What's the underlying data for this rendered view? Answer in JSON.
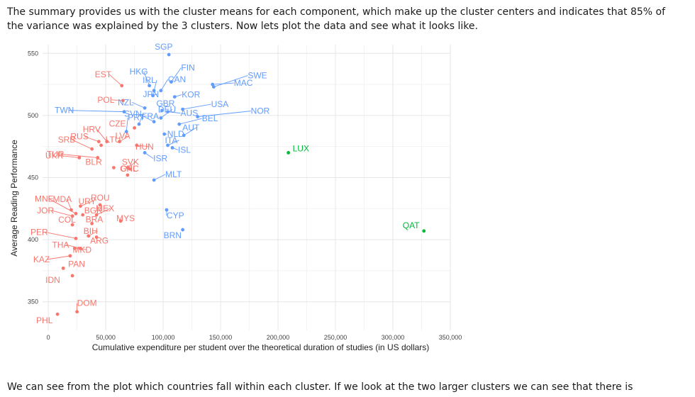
{
  "text": {
    "intro": "The summary provides us with the cluster means for each component, which make up the cluster centers and indicates that 85% of the variance was explained by the 3 clusters. Now lets plot the data and see what it looks like.",
    "outro": "We can see from the plot which countries fall within each cluster. If we look at the two larger clusters we can see that there is"
  },
  "chart_data": {
    "type": "scatter",
    "xlabel": "Cumulative expenditure per student over the theoretical duration of studies (in US dollars)",
    "ylabel": "Average Reading Performance",
    "xlim": [
      -5000,
      350000
    ],
    "ylim": [
      327,
      557
    ],
    "x_ticks": [
      0,
      50000,
      100000,
      150000,
      200000,
      250000,
      300000,
      350000
    ],
    "x_tick_labels": [
      "0",
      "50,000",
      "100,000",
      "150,000",
      "200,000",
      "250,000",
      "300,000",
      "350,000"
    ],
    "y_ticks": [
      350,
      400,
      450,
      500,
      550
    ],
    "y_tick_labels": [
      "350",
      "400",
      "450",
      "500",
      "550"
    ],
    "grid": true,
    "legend": "none",
    "cluster_colors": {
      "1": "#f8766d",
      "2": "#619cff",
      "3": "#00ba38"
    },
    "points": [
      {
        "label": "SGP",
        "x": 105000,
        "y": 549,
        "cluster": 2
      },
      {
        "label": "HKG",
        "x": 88000,
        "y": 524,
        "cluster": 2
      },
      {
        "label": "FIN",
        "x": 107000,
        "y": 527,
        "cluster": 2
      },
      {
        "label": "EST",
        "x": 64000,
        "y": 524,
        "cluster": 1
      },
      {
        "label": "IRL",
        "x": 92000,
        "y": 520,
        "cluster": 2
      },
      {
        "label": "CAN",
        "x": 98000,
        "y": 520,
        "cluster": 2
      },
      {
        "label": "SWE",
        "x": 144000,
        "y": 523,
        "cluster": 2
      },
      {
        "label": "POL",
        "x": 65000,
        "y": 512,
        "cluster": 1
      },
      {
        "label": "JPN",
        "x": 91000,
        "y": 516,
        "cluster": 2
      },
      {
        "label": "KOR",
        "x": 110000,
        "y": 515,
        "cluster": 2
      },
      {
        "label": "MAC",
        "x": 143000,
        "y": 525,
        "cluster": 2
      },
      {
        "label": "TWN",
        "x": 66000,
        "y": 503,
        "cluster": 2
      },
      {
        "label": "NZL",
        "x": 84000,
        "y": 506,
        "cluster": 2
      },
      {
        "label": "GBR",
        "x": 99000,
        "y": 504,
        "cluster": 2
      },
      {
        "label": "USA",
        "x": 117000,
        "y": 505,
        "cluster": 2
      },
      {
        "label": "CZE",
        "x": 75000,
        "y": 490,
        "cluster": 1
      },
      {
        "label": "SVN",
        "x": 92000,
        "y": 495,
        "cluster": 2
      },
      {
        "label": "AUS",
        "x": 104000,
        "y": 503,
        "cluster": 2
      },
      {
        "label": "NOR",
        "x": 130000,
        "y": 499,
        "cluster": 2
      },
      {
        "label": "TUR",
        "x": 43000,
        "y": 466,
        "cluster": 1
      },
      {
        "label": "HRV",
        "x": 51000,
        "y": 479,
        "cluster": 1
      },
      {
        "label": "PRT",
        "x": 68000,
        "y": 487,
        "cluster": 2
      },
      {
        "label": "FRA",
        "x": 79000,
        "y": 493,
        "cluster": 2
      },
      {
        "label": "DEU",
        "x": 98000,
        "y": 498,
        "cluster": 2
      },
      {
        "label": "BEL",
        "x": 114000,
        "y": 493,
        "cluster": 2
      },
      {
        "label": "UKR",
        "x": 27000,
        "y": 466,
        "cluster": 1
      },
      {
        "label": "RUS",
        "x": 44000,
        "y": 479,
        "cluster": 1
      },
      {
        "label": "LVA",
        "x": 62000,
        "y": 479,
        "cluster": 1
      },
      {
        "label": "ITA",
        "x": 104000,
        "y": 476,
        "cluster": 2
      },
      {
        "label": "NLD",
        "x": 101000,
        "y": 485,
        "cluster": 2
      },
      {
        "label": "AUT",
        "x": 118000,
        "y": 484,
        "cluster": 2
      },
      {
        "label": "LUX",
        "x": 209000,
        "y": 470,
        "cluster": 3
      },
      {
        "label": "SRB",
        "x": 38000,
        "y": 473,
        "cluster": 1
      },
      {
        "label": "LTU",
        "x": 46000,
        "y": 476,
        "cluster": 1
      },
      {
        "label": "ISR",
        "x": 84000,
        "y": 470,
        "cluster": 2
      },
      {
        "label": "HUN",
        "x": 77000,
        "y": 476,
        "cluster": 1
      },
      {
        "label": "ISL",
        "x": 108000,
        "y": 474,
        "cluster": 2
      },
      {
        "label": "MNE",
        "x": 24000,
        "y": 421,
        "cluster": 1
      },
      {
        "label": "BLR",
        "x": 57000,
        "y": 458,
        "cluster": 1
      },
      {
        "label": "SVK",
        "x": 69000,
        "y": 458,
        "cluster": 1
      },
      {
        "label": "MLT",
        "x": 92000,
        "y": 448,
        "cluster": 2
      },
      {
        "label": "CHL",
        "x": 69000,
        "y": 452,
        "cluster": 1
      },
      {
        "label": "GRC",
        "x": 71000,
        "y": 457,
        "cluster": 1
      },
      {
        "label": "MDA",
        "x": 20000,
        "y": 424,
        "cluster": 1
      },
      {
        "label": "ROU",
        "x": 45000,
        "y": 428,
        "cluster": 1
      },
      {
        "label": "URY",
        "x": 28000,
        "y": 427,
        "cluster": 1
      },
      {
        "label": "MEX",
        "x": 42000,
        "y": 420,
        "cluster": 1
      },
      {
        "label": "JOR",
        "x": 21000,
        "y": 419,
        "cluster": 1
      },
      {
        "label": "BGR",
        "x": 30000,
        "y": 420,
        "cluster": 1
      },
      {
        "label": "MYS",
        "x": 63000,
        "y": 415,
        "cluster": 1
      },
      {
        "label": "CYP",
        "x": 103000,
        "y": 424,
        "cluster": 2
      },
      {
        "label": "COL",
        "x": 21000,
        "y": 412,
        "cluster": 1
      },
      {
        "label": "BIH",
        "x": 35000,
        "y": 403,
        "cluster": 1
      },
      {
        "label": "BRA",
        "x": 38000,
        "y": 413,
        "cluster": 1
      },
      {
        "label": "BRN",
        "x": 117000,
        "y": 408,
        "cluster": 2
      },
      {
        "label": "PER",
        "x": 24000,
        "y": 401,
        "cluster": 1
      },
      {
        "label": "ARG",
        "x": 42000,
        "y": 402,
        "cluster": 1
      },
      {
        "label": "QAT",
        "x": 327000,
        "y": 407,
        "cluster": 3
      },
      {
        "label": "THA",
        "x": 28000,
        "y": 393,
        "cluster": 1
      },
      {
        "label": "KAZ",
        "x": 19000,
        "y": 387,
        "cluster": 1
      },
      {
        "label": "MKD",
        "x": 23000,
        "y": 393,
        "cluster": 1
      },
      {
        "label": "PAN",
        "x": 13000,
        "y": 377,
        "cluster": 1
      },
      {
        "label": "IDN",
        "x": 21000,
        "y": 371,
        "cluster": 1
      },
      {
        "label": "DOM",
        "x": 25000,
        "y": 342,
        "cluster": 1
      },
      {
        "label": "PHL",
        "x": 8000,
        "y": 340,
        "cluster": 1
      }
    ]
  }
}
